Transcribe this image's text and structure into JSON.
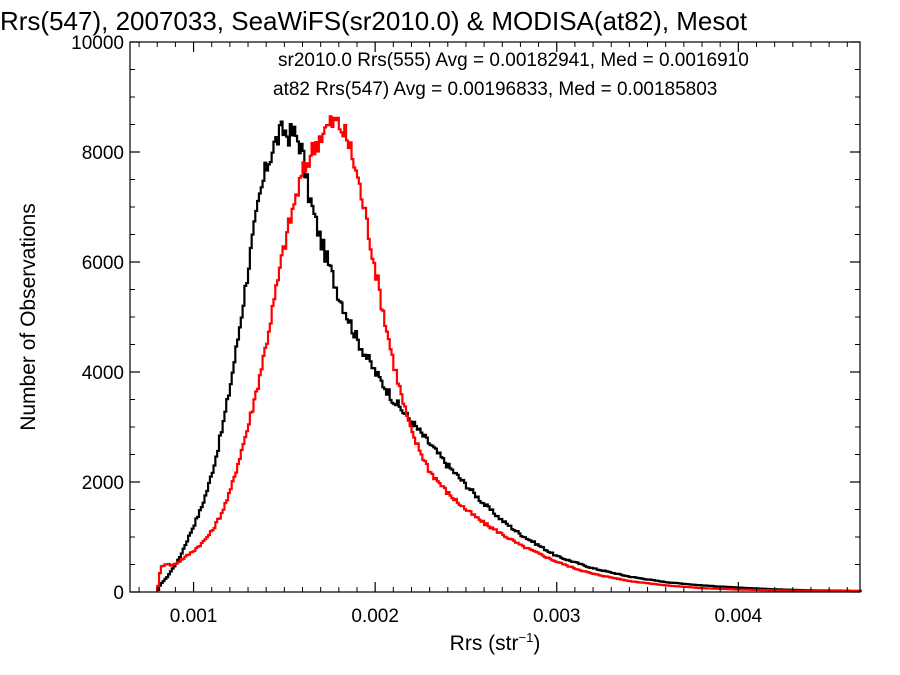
{
  "chart_data": {
    "type": "line",
    "title": "Rrs(547), 2007033, SeaWiFS(sr2010.0) & MODISA(at82), Mesot",
    "xlabel": "Rrs (str",
    "xlabel_exponent": "−1",
    "xlabel_close": ")",
    "ylabel": "Number of Observations",
    "xlim": [
      0.00065,
      0.00467
    ],
    "ylim": [
      0,
      10000
    ],
    "x_ticks": [
      0.001,
      0.002,
      0.003,
      0.004
    ],
    "x_tick_labels": [
      "0.001",
      "0.002",
      "0.003",
      "0.004"
    ],
    "y_ticks": [
      0,
      2000,
      4000,
      6000,
      8000,
      10000
    ],
    "y_tick_labels": [
      "0",
      "2000",
      "4000",
      "6000",
      "8000",
      "10000"
    ],
    "grid": false,
    "step": true,
    "annotations": [
      {
        "text": "sr2010.0 Rrs(555) Avg = 0.00182941, Med = 0.0016910",
        "color": "#000000"
      },
      {
        "text": "at82 Rrs(547) Avg = 0.00196833, Med = 0.00185803",
        "color": "#ff0000"
      }
    ],
    "series": [
      {
        "color": "#000000",
        "x": [
          0.0008,
          0.00082,
          0.00085,
          0.00088,
          0.00092,
          0.00096,
          0.001,
          0.00104,
          0.00108,
          0.00112,
          0.00116,
          0.0012,
          0.00124,
          0.00128,
          0.00132,
          0.00136,
          0.0014,
          0.00144,
          0.00148,
          0.0015,
          0.00152,
          0.00155,
          0.00158,
          0.0016,
          0.00163,
          0.00166,
          0.0017,
          0.00175,
          0.0018,
          0.00185,
          0.0019,
          0.00195,
          0.002,
          0.0021,
          0.0022,
          0.0023,
          0.0024,
          0.0025,
          0.0026,
          0.0027,
          0.0028,
          0.0029,
          0.003,
          0.0032,
          0.0034,
          0.0036,
          0.0038,
          0.004,
          0.0042,
          0.0044,
          0.00467
        ],
        "y": [
          0,
          150,
          250,
          400,
          600,
          900,
          1200,
          1500,
          1900,
          2400,
          3000,
          3700,
          4500,
          5400,
          6300,
          7100,
          7700,
          8100,
          8350,
          8400,
          8300,
          8350,
          8200,
          8000,
          7300,
          6900,
          6400,
          5900,
          5400,
          5000,
          4600,
          4300,
          4000,
          3500,
          3100,
          2700,
          2300,
          1950,
          1600,
          1300,
          1050,
          850,
          650,
          430,
          280,
          180,
          120,
          80,
          50,
          30,
          20
        ]
      },
      {
        "color": "#ff0000",
        "x": [
          0.0008,
          0.00082,
          0.00085,
          0.00088,
          0.00092,
          0.00096,
          0.001,
          0.00105,
          0.0011,
          0.00115,
          0.0012,
          0.00125,
          0.0013,
          0.00135,
          0.0014,
          0.00145,
          0.0015,
          0.00155,
          0.0016,
          0.00165,
          0.0017,
          0.00175,
          0.00178,
          0.0018,
          0.00183,
          0.00186,
          0.0019,
          0.00195,
          0.002,
          0.00205,
          0.0021,
          0.00215,
          0.0022,
          0.0023,
          0.0024,
          0.0025,
          0.0026,
          0.0027,
          0.0028,
          0.0029,
          0.003,
          0.0031,
          0.0032,
          0.0034,
          0.0036,
          0.0038,
          0.004,
          0.0042,
          0.0044,
          0.00467
        ],
        "y": [
          0,
          450,
          520,
          480,
          550,
          650,
          750,
          900,
          1100,
          1400,
          1800,
          2400,
          3000,
          3700,
          4500,
          5400,
          6300,
          7000,
          7600,
          8000,
          8300,
          8500,
          8550,
          8500,
          8350,
          8100,
          7600,
          6800,
          5900,
          5000,
          4200,
          3500,
          2900,
          2200,
          1800,
          1500,
          1250,
          1050,
          850,
          700,
          550,
          430,
          330,
          200,
          120,
          70,
          45,
          30,
          20,
          15
        ]
      }
    ]
  }
}
